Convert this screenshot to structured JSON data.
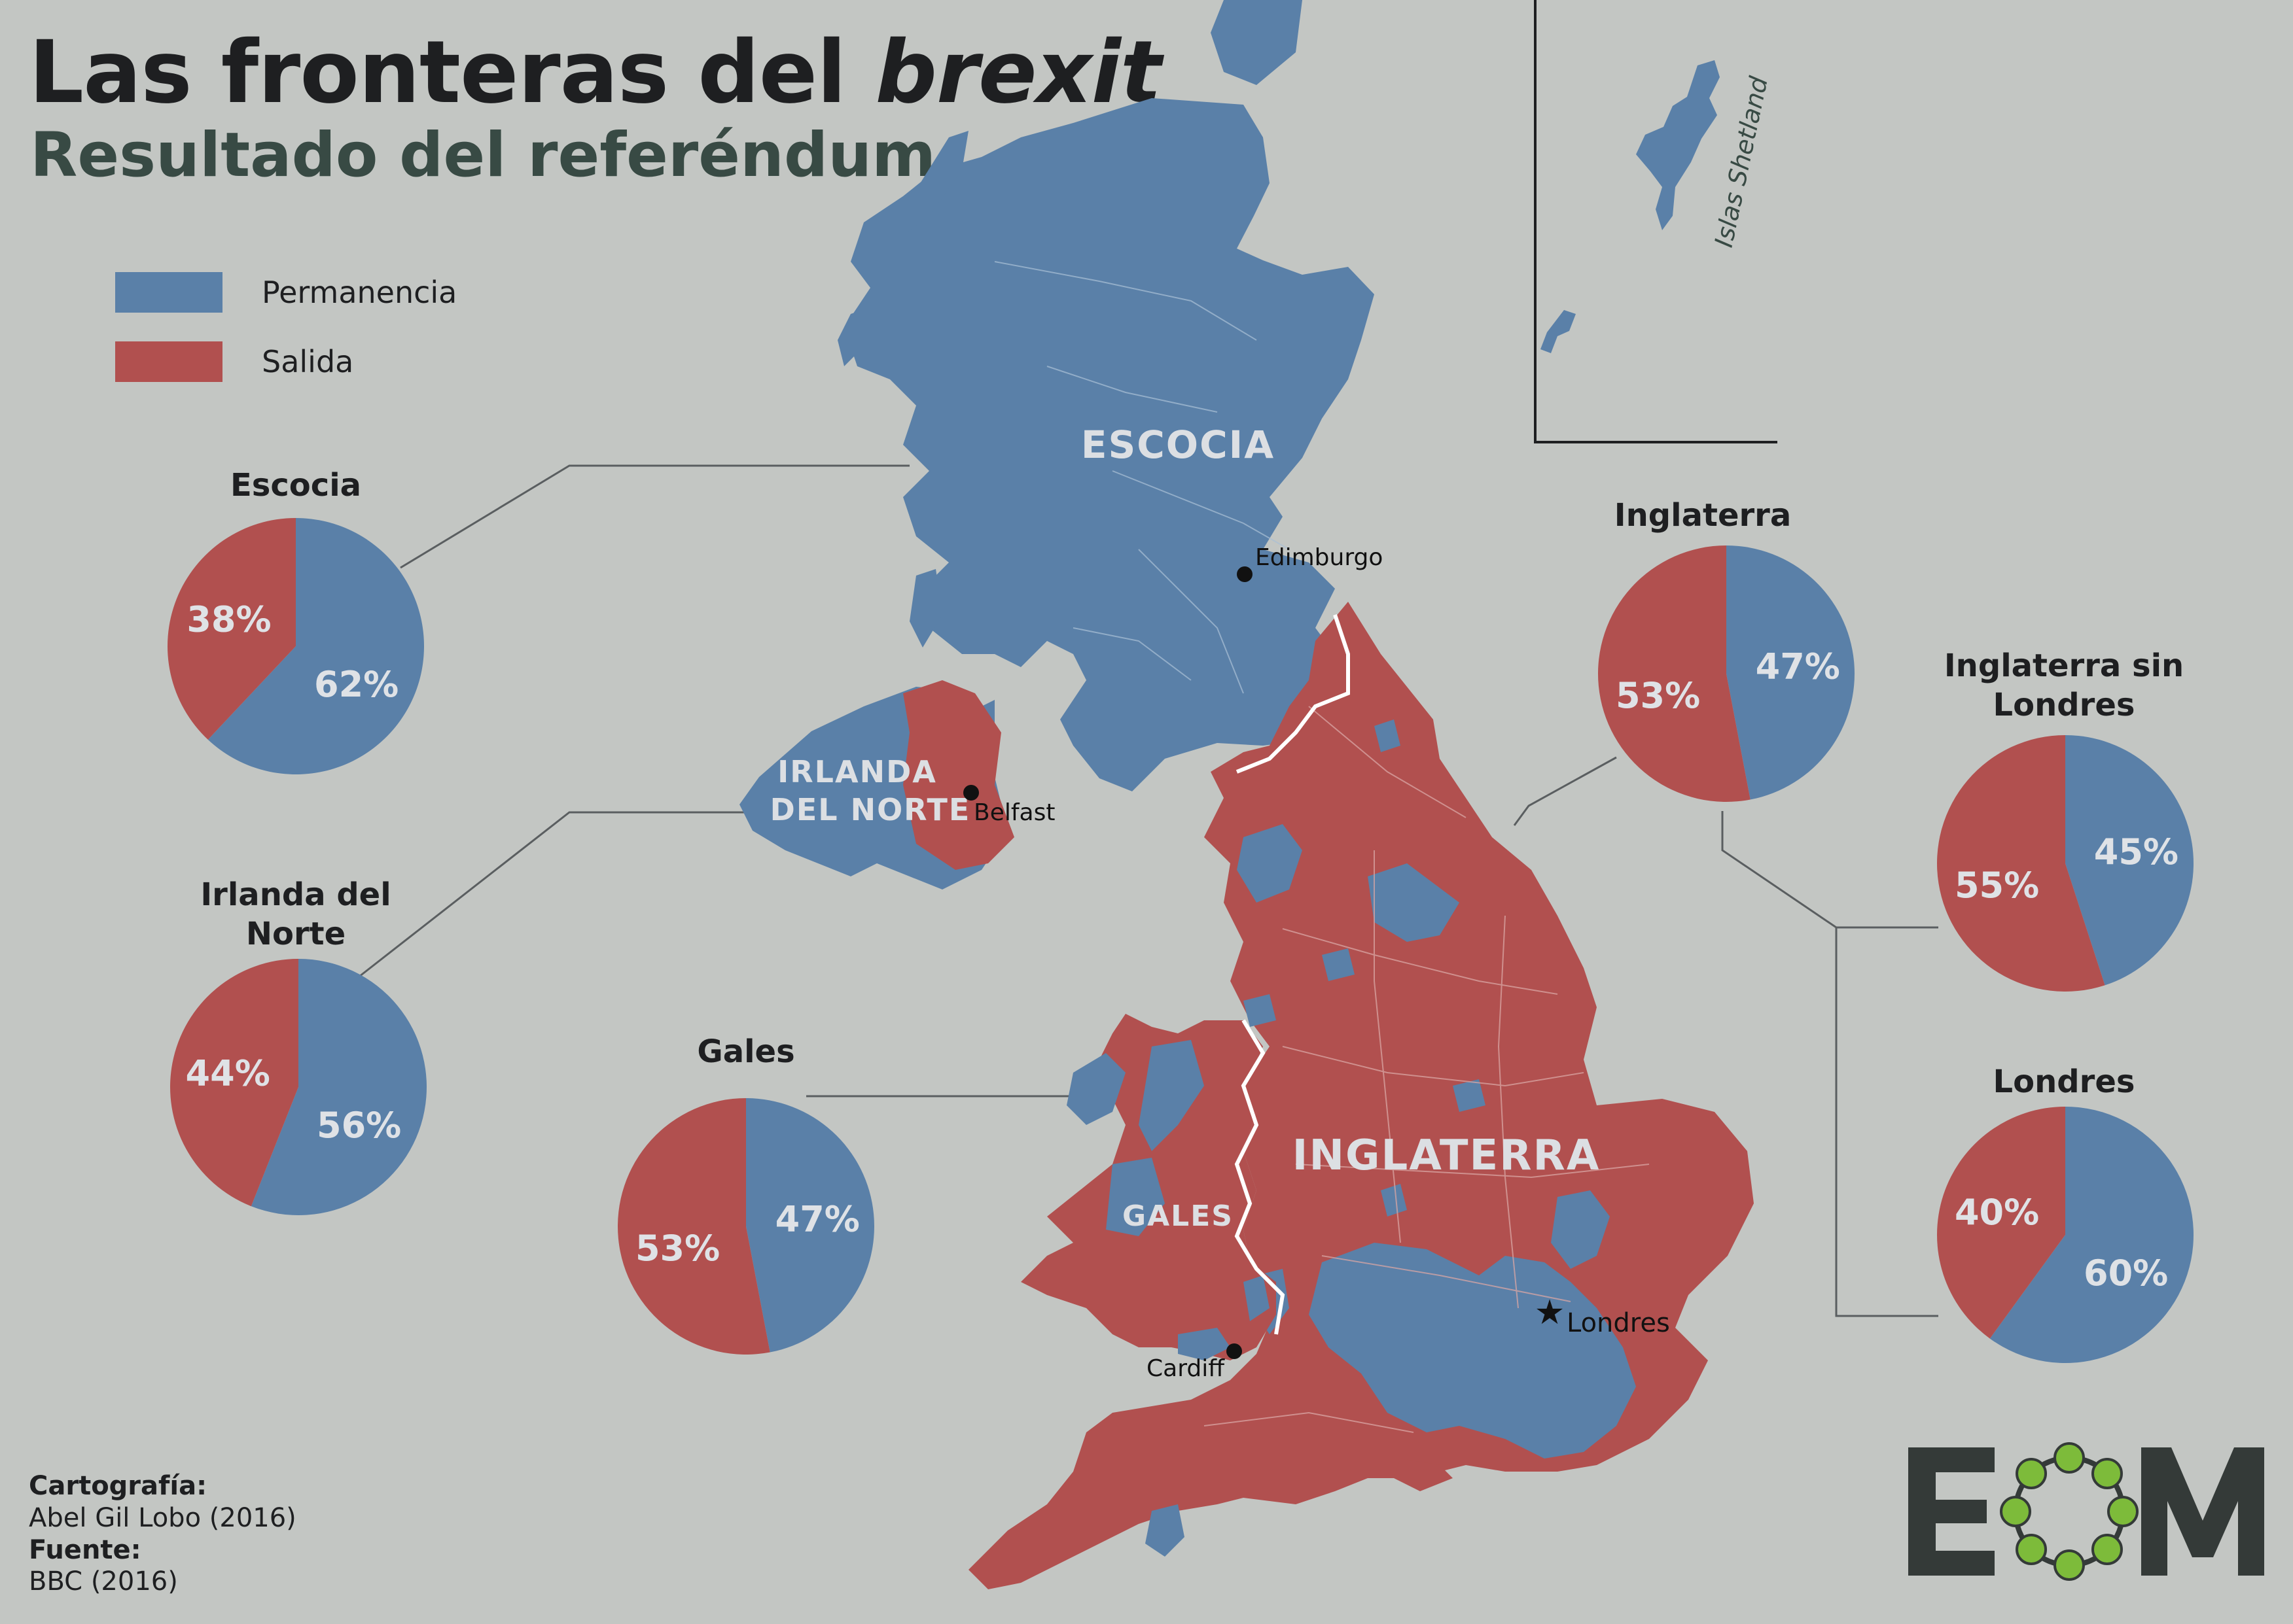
{
  "header": {
    "title_prefix": "Las fronteras del",
    "title_emphasis": "brexit",
    "subtitle": "Resultado del referéndum"
  },
  "legend": [
    {
      "label": "Permanencia",
      "color": "#5a80a8"
    },
    {
      "label": "Salida",
      "color": "#b1504f"
    }
  ],
  "colors": {
    "remain": "#5a80a8",
    "leave": "#b1504f",
    "background": "#c3c6c3"
  },
  "map": {
    "regions": {
      "scotland": "ESCOCIA",
      "northern_ireland_line1": "IRLANDA",
      "northern_ireland_line2": "DEL NORTE",
      "wales": "GALES",
      "england": "INGLATERRA"
    },
    "cities": {
      "edinburgh": "Edimburgo",
      "belfast": "Belfast",
      "cardiff": "Cardiff",
      "london": "Londres"
    },
    "inset_label": "Islas Shetland"
  },
  "chart_data": [
    {
      "type": "pie",
      "title": "Escocia",
      "categories": [
        "Permanencia",
        "Salida"
      ],
      "values": [
        62,
        38
      ],
      "labels": [
        "62%",
        "38%"
      ]
    },
    {
      "type": "pie",
      "title": "Irlanda del Norte",
      "categories": [
        "Permanencia",
        "Salida"
      ],
      "values": [
        56,
        44
      ],
      "labels": [
        "56%",
        "44%"
      ]
    },
    {
      "type": "pie",
      "title": "Gales",
      "categories": [
        "Permanencia",
        "Salida"
      ],
      "values": [
        47,
        53
      ],
      "labels": [
        "47%",
        "53%"
      ]
    },
    {
      "type": "pie",
      "title": "Inglaterra",
      "categories": [
        "Permanencia",
        "Salida"
      ],
      "values": [
        47,
        53
      ],
      "labels": [
        "47%",
        "53%"
      ]
    },
    {
      "type": "pie",
      "title": "Inglaterra sin Londres",
      "categories": [
        "Permanencia",
        "Salida"
      ],
      "values": [
        45,
        55
      ],
      "labels": [
        "45%",
        "55%"
      ]
    },
    {
      "type": "pie",
      "title": "Londres",
      "categories": [
        "Permanencia",
        "Salida"
      ],
      "values": [
        60,
        40
      ],
      "labels": [
        "60%",
        "40%"
      ]
    }
  ],
  "pie_titles": {
    "escocia": "Escocia",
    "irlanda_line1": "Irlanda del",
    "irlanda_line2": "Norte",
    "gales": "Gales",
    "inglaterra": "Inglaterra",
    "sin_londres_line1": "Inglaterra sin",
    "sin_londres_line2": "Londres",
    "londres": "Londres"
  },
  "credits": {
    "cartography_heading": "Cartografía:",
    "cartography_value": "Abel Gil Lobo (2016)",
    "source_heading": "Fuente:",
    "source_value": "BBC (2016)"
  },
  "logo": {
    "text": "EOM"
  }
}
